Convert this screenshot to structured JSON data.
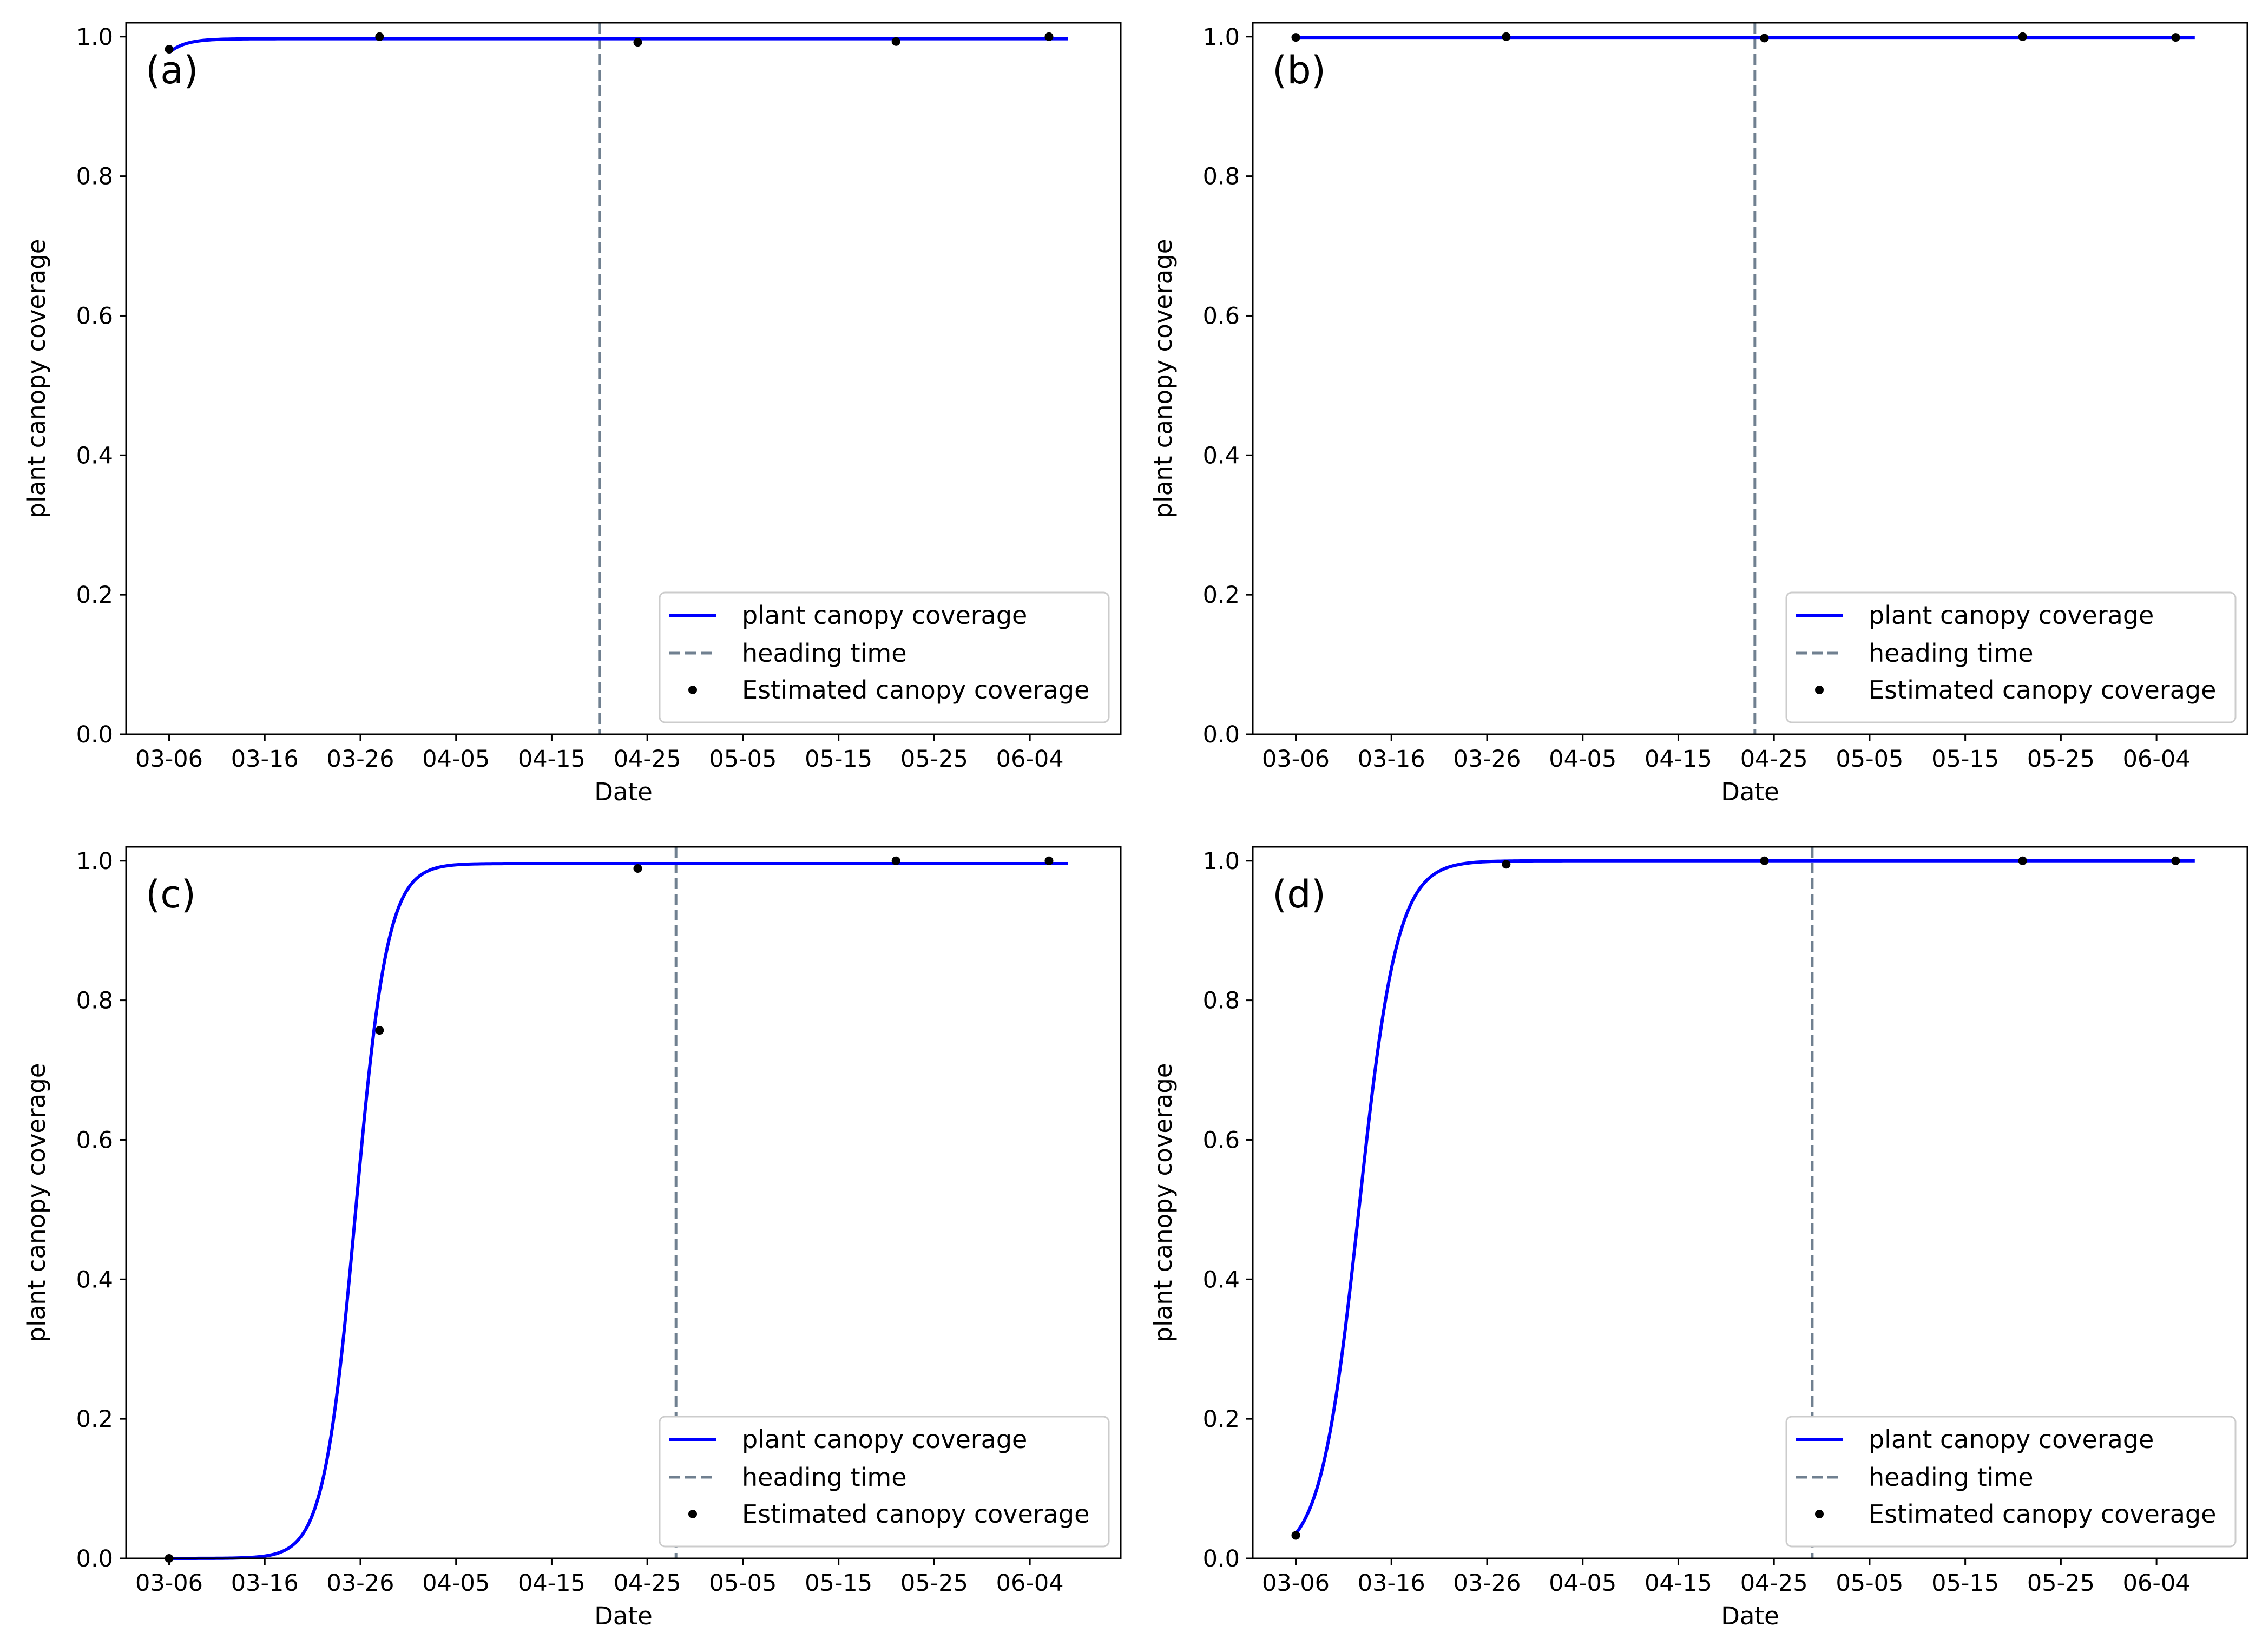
{
  "colors": {
    "curve": "#0000ff",
    "heading": "#708090",
    "points": "#000000",
    "axes": "#000000",
    "legend_border": "#cccccc"
  },
  "legend": {
    "curve": "plant canopy coverage",
    "heading": "heading time",
    "points": "Estimated canopy coverage"
  },
  "chart_data": [
    {
      "type": "line",
      "panel_label": "(a)",
      "xlabel": "Date",
      "ylabel": "plant canopy coverage",
      "x_ticks": [
        0,
        10,
        20,
        30,
        40,
        50,
        60,
        70,
        80,
        90
      ],
      "x_tick_labels": [
        "03-06",
        "03-16",
        "03-26",
        "04-05",
        "04-15",
        "04-25",
        "05-05",
        "05-15",
        "05-25",
        "06-04"
      ],
      "y_ticks": [
        0.0,
        0.2,
        0.4,
        0.6,
        0.8,
        1.0
      ],
      "y_tick_labels": [
        "0.0",
        "0.2",
        "0.4",
        "0.6",
        "0.8",
        "1.0"
      ],
      "xlim": [
        -4.5,
        99.5
      ],
      "ylim": [
        0,
        1.02
      ],
      "x_unit": "days since 03-06",
      "curve": {
        "name": "plant canopy coverage",
        "start": 0,
        "end": 94,
        "L": 0.997,
        "k": 0.6,
        "x0": -6.5
      },
      "heading_time": 45,
      "points": {
        "name": "Estimated canopy coverage",
        "x": [
          0,
          22,
          49,
          76,
          92
        ],
        "y": [
          0.982,
          1.0,
          0.992,
          0.993,
          1.0
        ]
      },
      "legend_position": "lower right"
    },
    {
      "type": "line",
      "panel_label": "(b)",
      "xlabel": "Date",
      "ylabel": "plant canopy coverage",
      "x_ticks": [
        0,
        10,
        20,
        30,
        40,
        50,
        60,
        70,
        80,
        90
      ],
      "x_tick_labels": [
        "03-06",
        "03-16",
        "03-26",
        "04-05",
        "04-15",
        "04-25",
        "05-05",
        "05-15",
        "05-25",
        "06-04"
      ],
      "y_ticks": [
        0.0,
        0.2,
        0.4,
        0.6,
        0.8,
        1.0
      ],
      "y_tick_labels": [
        "0.0",
        "0.2",
        "0.4",
        "0.6",
        "0.8",
        "1.0"
      ],
      "xlim": [
        -4.5,
        99.5
      ],
      "ylim": [
        0,
        1.02
      ],
      "x_unit": "days since 03-06",
      "curve": {
        "name": "plant canopy coverage",
        "start": 0,
        "end": 94,
        "L": 0.999,
        "k": 0.6,
        "x0": -20
      },
      "heading_time": 48,
      "points": {
        "name": "Estimated canopy coverage",
        "x": [
          0,
          22,
          49,
          76,
          92
        ],
        "y": [
          0.999,
          1.0,
          0.998,
          1.0,
          0.999
        ]
      },
      "legend_position": "lower right"
    },
    {
      "type": "line",
      "panel_label": "(c)",
      "xlabel": "Date",
      "ylabel": "plant canopy coverage",
      "x_ticks": [
        0,
        10,
        20,
        30,
        40,
        50,
        60,
        70,
        80,
        90
      ],
      "x_tick_labels": [
        "03-06",
        "03-16",
        "03-26",
        "04-05",
        "04-15",
        "04-25",
        "05-05",
        "05-15",
        "05-25",
        "06-04"
      ],
      "y_ticks": [
        0.0,
        0.2,
        0.4,
        0.6,
        0.8,
        1.0
      ],
      "y_tick_labels": [
        "0.0",
        "0.2",
        "0.4",
        "0.6",
        "0.8",
        "1.0"
      ],
      "xlim": [
        -4.5,
        99.5
      ],
      "ylim": [
        0,
        1.02
      ],
      "x_unit": "days since 03-06",
      "curve": {
        "name": "plant canopy coverage",
        "start": 0,
        "end": 94,
        "L": 0.996,
        "k": 0.6,
        "x0": 19.5
      },
      "heading_time": 53,
      "points": {
        "name": "Estimated canopy coverage",
        "x": [
          0,
          22,
          49,
          76,
          92
        ],
        "y": [
          0.0,
          0.757,
          0.989,
          1.0,
          1.0
        ]
      },
      "legend_position": "lower right"
    },
    {
      "type": "line",
      "panel_label": "(d)",
      "xlabel": "Date",
      "ylabel": "plant canopy coverage",
      "x_ticks": [
        0,
        10,
        20,
        30,
        40,
        50,
        60,
        70,
        80,
        90
      ],
      "x_tick_labels": [
        "03-06",
        "03-16",
        "03-26",
        "04-05",
        "04-15",
        "04-25",
        "05-05",
        "05-15",
        "05-25",
        "06-04"
      ],
      "y_ticks": [
        0.0,
        0.2,
        0.4,
        0.6,
        0.8,
        1.0
      ],
      "y_tick_labels": [
        "0.0",
        "0.2",
        "0.4",
        "0.6",
        "0.8",
        "1.0"
      ],
      "xlim": [
        -4.5,
        99.5
      ],
      "ylim": [
        0,
        1.02
      ],
      "x_unit": "days since 03-06",
      "curve": {
        "name": "plant canopy coverage",
        "start": 0,
        "end": 94,
        "L": 1.0,
        "k": 0.5,
        "x0": 6.6
      },
      "heading_time": 54,
      "points": {
        "name": "Estimated canopy coverage",
        "x": [
          0,
          22,
          49,
          76,
          92
        ],
        "y": [
          0.033,
          0.995,
          1.0,
          1.0,
          1.0
        ]
      },
      "legend_position": "lower right"
    }
  ]
}
